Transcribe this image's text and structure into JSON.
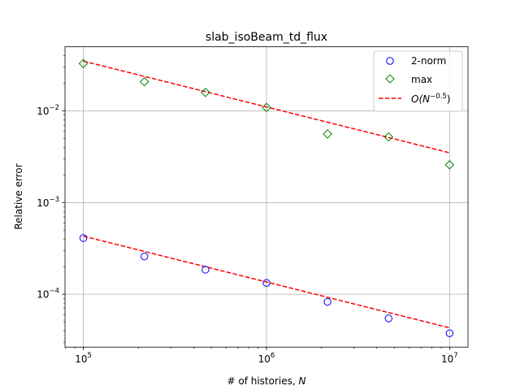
{
  "chart_data": {
    "type": "scatter",
    "title": "slab_isoBeam_td_flux",
    "xlabel": "# of histories, ",
    "xlabel_var": "N",
    "ylabel": "Relative error",
    "xscale": "log",
    "yscale": "log",
    "xlim": [
      79400,
      12600000
    ],
    "ylim": [
      2.65e-05,
      0.05
    ],
    "grid": true,
    "legend_position": "upper right",
    "x_ticks": [
      {
        "value": 100000,
        "base": "10",
        "exp": "5"
      },
      {
        "value": 1000000,
        "base": "10",
        "exp": "6"
      },
      {
        "value": 10000000,
        "base": "10",
        "exp": "7"
      }
    ],
    "y_ticks": [
      {
        "value": 0.0001,
        "base": "10",
        "exp": "−4"
      },
      {
        "value": 0.001,
        "base": "10",
        "exp": "−3"
      },
      {
        "value": 0.01,
        "base": "10",
        "exp": "−2"
      }
    ],
    "series": [
      {
        "name": "2-norm",
        "marker": "circle",
        "color": "#0000ff",
        "x": [
          100000,
          215443,
          464159,
          1000000,
          2154435,
          4641589,
          10000000
        ],
        "y": [
          0.00041,
          0.000258,
          0.000185,
          0.000133,
          8.25e-05,
          5.45e-05,
          3.75e-05
        ]
      },
      {
        "name": "max",
        "marker": "diamond",
        "color": "#008000",
        "x": [
          100000,
          215443,
          464159,
          1000000,
          2154435,
          4641589,
          10000000
        ],
        "y": [
          0.0328,
          0.0208,
          0.0159,
          0.0109,
          0.0056,
          0.0052,
          0.00258
        ]
      }
    ],
    "reference_lines": [
      {
        "slope": -0.5,
        "x": [
          100000,
          10000000
        ],
        "y": [
          0.00043,
          4.3e-05
        ],
        "color": "#ff0000",
        "style": "dashed"
      },
      {
        "slope": -0.5,
        "x": [
          100000,
          10000000
        ],
        "y": [
          0.0349,
          0.00349
        ],
        "color": "#ff0000",
        "style": "dashed"
      }
    ],
    "legend": [
      {
        "label": "2-norm",
        "marker": "circle",
        "color": "#0000ff"
      },
      {
        "label": "max",
        "marker": "diamond",
        "color": "#008000"
      },
      {
        "label_prefix": "O(N",
        "label_exp": "−0.5",
        "label_suffix": ")",
        "marker": "dashed-line",
        "color": "#ff0000"
      }
    ]
  }
}
